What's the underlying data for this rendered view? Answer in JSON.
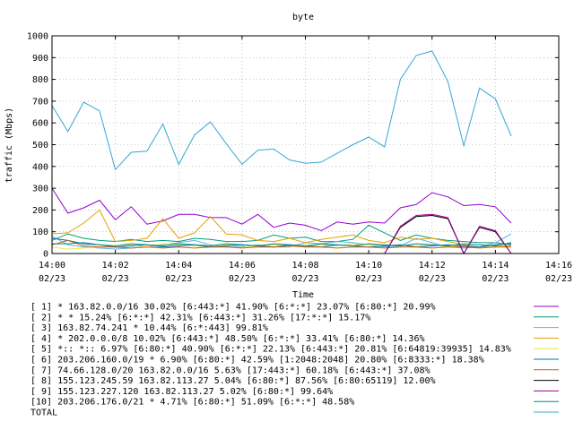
{
  "chart_data": {
    "type": "line",
    "title": "byte",
    "xlabel": "Time",
    "ylabel": "traffic (Mbps)",
    "ylim": [
      0,
      1000
    ],
    "xlim_minutes": [
      0,
      16
    ],
    "grid": true,
    "legend_position": "bottom",
    "y_ticks": [
      "0",
      "100",
      "200",
      "300",
      "400",
      "500",
      "600",
      "700",
      "800",
      "900",
      "1000"
    ],
    "x_ticks": [
      {
        "minute": 0,
        "time": "14:00",
        "date": "02/23"
      },
      {
        "minute": 2,
        "time": "14:02",
        "date": "02/23"
      },
      {
        "minute": 4,
        "time": "14:04",
        "date": "02/23"
      },
      {
        "minute": 6,
        "time": "14:06",
        "date": "02/23"
      },
      {
        "minute": 8,
        "time": "14:08",
        "date": "02/23"
      },
      {
        "minute": 10,
        "time": "14:10",
        "date": "02/23"
      },
      {
        "minute": 12,
        "time": "14:12",
        "date": "02/23"
      },
      {
        "minute": 14,
        "time": "14:14",
        "date": "02/23"
      },
      {
        "minute": 16,
        "time": "14:16",
        "date": "02/23"
      }
    ],
    "series": [
      {
        "legend": "[ 1] * 163.82.0.0/16 30.02%  [6:443:*] 41.90% [6:*:*] 23.07% [6:80:*] 20.99%",
        "color": "#9400d3",
        "x": [
          0,
          0.5,
          1,
          1.5,
          2,
          2.5,
          3,
          3.5,
          4,
          4.5,
          5,
          5.5,
          6,
          6.5,
          7,
          7.5,
          8,
          8.5,
          9,
          9.5,
          10,
          10.5,
          11,
          11.5,
          12,
          12.5,
          13,
          13.5,
          14,
          14.5
        ],
        "values": [
          300,
          185,
          210,
          245,
          155,
          215,
          135,
          150,
          180,
          180,
          165,
          165,
          135,
          180,
          120,
          140,
          130,
          105,
          145,
          135,
          145,
          140,
          210,
          225,
          280,
          260,
          220,
          225,
          215,
          140
        ]
      },
      {
        "legend": "[ 2] * * 15.24%  [6:*:*] 42.31% [6:443:*] 31.26% [17:*:*] 15.17%",
        "color": "#009e73",
        "x": [
          0,
          0.5,
          1,
          1.5,
          2,
          2.5,
          3,
          3.5,
          4,
          4.5,
          5,
          5.5,
          6,
          6.5,
          7,
          7.5,
          8,
          8.5,
          9,
          9.5,
          10,
          10.5,
          11,
          11.5,
          12,
          12.5,
          13,
          13.5,
          14,
          14.5
        ],
        "values": [
          60,
          90,
          70,
          60,
          55,
          65,
          55,
          60,
          55,
          70,
          65,
          55,
          55,
          60,
          85,
          70,
          75,
          55,
          55,
          65,
          130,
          95,
          60,
          85,
          70,
          60,
          55,
          50,
          50,
          40
        ]
      },
      {
        "legend": "[ 3] 163.82.74.241 * 10.44%  [6:*:443] 99.81%",
        "color": "#56b4e9",
        "x": [
          0,
          0.5,
          1,
          1.5,
          2,
          2.5,
          3,
          3.5,
          4,
          4.5,
          5,
          5.5,
          6,
          6.5,
          7,
          7.5,
          8,
          8.5,
          9,
          9.5,
          10,
          10.5,
          11,
          11.5,
          12,
          12.5,
          13,
          13.5,
          14,
          14.5
        ],
        "values": [
          80,
          40,
          30,
          25,
          20,
          25,
          30,
          40,
          50,
          60,
          40,
          30,
          30,
          40,
          30,
          30,
          50,
          45,
          55,
          50,
          40,
          30,
          35,
          70,
          50,
          30,
          25,
          30,
          50,
          90
        ]
      },
      {
        "legend": "[ 4] * 202.0.0.0/8 10.02%  [6:443:*] 48.50% [6:*:*] 33.41% [6:80:*] 14.36%",
        "color": "#e69f00",
        "x": [
          0,
          0.5,
          1,
          1.5,
          2,
          2.5,
          3,
          3.5,
          4,
          4.5,
          5,
          5.5,
          6,
          6.5,
          7,
          7.5,
          8,
          8.5,
          9,
          9.5,
          10,
          10.5,
          11,
          11.5,
          12,
          12.5,
          13,
          13.5,
          14,
          14.5
        ],
        "values": [
          90,
          95,
          140,
          200,
          55,
          60,
          70,
          160,
          70,
          95,
          170,
          90,
          85,
          60,
          55,
          70,
          50,
          65,
          75,
          85,
          60,
          50,
          75,
          65,
          70,
          55,
          40,
          30,
          35,
          35
        ]
      },
      {
        "legend": "[ 5] *:: *:: 6.97%  [6:80:*] 40.90% [6:*:*] 22.13% [6:443:*] 20.81% [6:64819:39935] 14.83%",
        "color": "#f0e442",
        "x": [
          0,
          0.5,
          1,
          1.5,
          2,
          2.5,
          3,
          3.5,
          4,
          4.5,
          5,
          5.5,
          6,
          6.5,
          7,
          7.5,
          8,
          8.5,
          9,
          9.5,
          10,
          10.5,
          11,
          11.5,
          12,
          12.5,
          13,
          13.5,
          14,
          14.5
        ],
        "values": [
          30,
          20,
          25,
          30,
          35,
          40,
          30,
          45,
          40,
          35,
          30,
          40,
          35,
          30,
          40,
          35,
          30,
          40,
          35,
          45,
          40,
          35,
          40,
          35,
          40,
          30,
          35,
          30,
          35,
          30
        ]
      },
      {
        "legend": "[ 6] 203.206.160.0/19 * 6.90%  [6:80:*] 42.59% [1:2048:2048] 20.80% [6:8333:*] 18.38%",
        "color": "#0072b2",
        "x": [
          0,
          0.5,
          1,
          1.5,
          2,
          2.5,
          3,
          3.5,
          4,
          4.5,
          5,
          5.5,
          6,
          6.5,
          7,
          7.5,
          8,
          8.5,
          9,
          9.5,
          10,
          10.5,
          11,
          11.5,
          12,
          12.5,
          13,
          13.5,
          14,
          14.5
        ],
        "values": [
          70,
          60,
          45,
          40,
          30,
          35,
          40,
          30,
          35,
          40,
          30,
          35,
          40,
          35,
          30,
          40,
          35,
          30,
          40,
          35,
          30,
          35,
          40,
          30,
          35,
          40,
          35,
          30,
          40,
          45
        ]
      },
      {
        "legend": "[ 7] 74.66.128.0/20 163.82.0.0/16 5.63%  [17:443:*] 60.18% [6:443:*] 37.08%",
        "color": "#d55e00",
        "x": [
          0,
          0.5,
          1,
          1.5,
          2,
          2.5,
          3,
          3.5,
          4,
          4.5,
          5,
          5.5,
          6,
          6.5,
          7,
          7.5,
          8,
          8.5,
          9,
          9.5,
          10,
          10.5,
          11,
          11.5,
          12,
          12.5,
          13,
          13.5,
          14,
          14.5
        ],
        "values": [
          40,
          60,
          35,
          30,
          30,
          25,
          30,
          25,
          30,
          25,
          30,
          30,
          25,
          30,
          30,
          35,
          30,
          30,
          25,
          30,
          30,
          25,
          30,
          30,
          25,
          30,
          30,
          25,
          30,
          30
        ]
      },
      {
        "legend": "[ 8] 155.123.245.59 163.82.113.27 5.04%  [6:80:*] 87.56% [6:80:65119] 12.00%",
        "color": "#000000",
        "x": [
          0,
          0.5,
          1,
          1.5,
          2,
          2.5,
          3,
          3.5,
          4,
          4.5,
          5,
          5.5,
          6,
          6.5,
          7,
          7.5,
          8,
          8.5,
          9,
          9.5,
          10,
          10.5,
          11,
          11.5,
          12,
          12.5,
          13,
          13.5,
          14,
          14.5
        ],
        "values": [
          0,
          0,
          0,
          0,
          0,
          0,
          0,
          0,
          0,
          0,
          0,
          0,
          0,
          0,
          0,
          0,
          0,
          0,
          0,
          0,
          0,
          0,
          120,
          170,
          175,
          160,
          0,
          120,
          100,
          0
        ]
      },
      {
        "legend": "[ 9] 155.123.227.120 163.82.113.27 5.02%  [6:80:*] 99.64%",
        "color": "#a0008f",
        "x": [
          0,
          0.5,
          1,
          1.5,
          2,
          2.5,
          3,
          3.5,
          4,
          4.5,
          5,
          5.5,
          6,
          6.5,
          7,
          7.5,
          8,
          8.5,
          9,
          9.5,
          10,
          10.5,
          11,
          11.5,
          12,
          12.5,
          13,
          13.5,
          14,
          14.5
        ],
        "values": [
          0,
          0,
          0,
          0,
          0,
          0,
          0,
          0,
          0,
          0,
          0,
          0,
          0,
          0,
          0,
          0,
          0,
          0,
          0,
          0,
          0,
          0,
          125,
          175,
          180,
          165,
          0,
          125,
          105,
          0
        ]
      },
      {
        "legend": "[10] 203.206.176.0/21 * 4.71%  [6:80:*] 51.09% [6:*:*] 48.58%",
        "color": "#008b8b",
        "x": [
          0,
          0.5,
          1,
          1.5,
          2,
          2.5,
          3,
          3.5,
          4,
          4.5,
          5,
          5.5,
          6,
          6.5,
          7,
          7.5,
          8,
          8.5,
          9,
          9.5,
          10,
          10.5,
          11,
          11.5,
          12,
          12.5,
          13,
          13.5,
          14,
          14.5
        ],
        "values": [
          45,
          45,
          50,
          40,
          35,
          45,
          40,
          35,
          45,
          40,
          35,
          45,
          40,
          35,
          45,
          40,
          35,
          45,
          40,
          35,
          45,
          40,
          35,
          45,
          40,
          35,
          45,
          40,
          35,
          50
        ]
      },
      {
        "legend": "TOTAL",
        "color": "#33a7d6",
        "x": [
          0,
          0.5,
          1,
          1.5,
          2,
          2.5,
          3,
          3.5,
          4,
          4.5,
          5,
          5.5,
          6,
          6.5,
          7,
          7.5,
          8,
          8.5,
          9,
          9.5,
          10,
          10.5,
          11,
          11.5,
          12,
          12.5,
          13,
          13.5,
          14,
          14.5
        ],
        "values": [
          680,
          560,
          695,
          655,
          385,
          465,
          470,
          595,
          410,
          545,
          605,
          505,
          410,
          475,
          480,
          430,
          415,
          420,
          460,
          500,
          535,
          490,
          800,
          910,
          930,
          790,
          495,
          760,
          710,
          540
        ]
      }
    ]
  }
}
